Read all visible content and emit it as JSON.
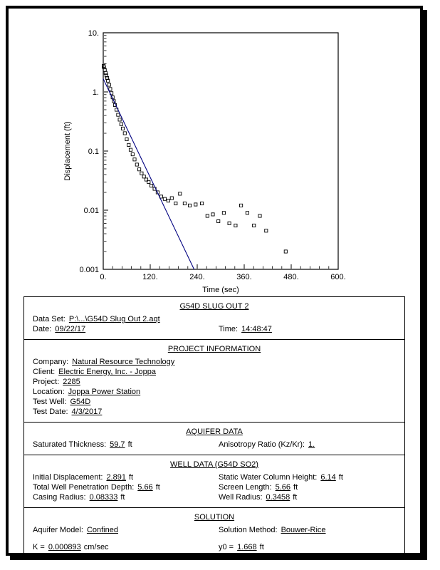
{
  "chart": {
    "ylabel": "Displacement (ft)",
    "xlabel": "Time (sec)",
    "y_tick_labels": [
      "10.",
      "1.",
      "0.1",
      "0.01",
      "0.001"
    ],
    "x_ticks": [
      0,
      120,
      240,
      360,
      480,
      600
    ],
    "x_tick_labels": [
      "0.",
      "120.",
      "240.",
      "360.",
      "480.",
      "600."
    ]
  },
  "chart_data": {
    "type": "scatter",
    "title": "",
    "xlabel": "Time (sec)",
    "ylabel": "Displacement (ft)",
    "xlim": [
      0,
      600
    ],
    "ylim": [
      0.001,
      10
    ],
    "yscale": "log",
    "grid": false,
    "series": [
      {
        "name": "observed-displacement",
        "marker": "open-square",
        "color": "#000000",
        "points": [
          [
            1,
            2.75
          ],
          [
            2,
            2.6
          ],
          [
            4,
            2.35
          ],
          [
            6,
            2.1
          ],
          [
            8,
            1.9
          ],
          [
            10,
            1.72
          ],
          [
            12,
            1.55
          ],
          [
            15,
            1.32
          ],
          [
            18,
            1.12
          ],
          [
            21,
            0.95
          ],
          [
            24,
            0.81
          ],
          [
            27,
            0.7
          ],
          [
            30,
            0.6
          ],
          [
            34,
            0.5
          ],
          [
            38,
            0.41
          ],
          [
            42,
            0.34
          ],
          [
            46,
            0.285
          ],
          [
            50,
            0.24
          ],
          [
            55,
            0.2
          ],
          [
            60,
            0.158
          ],
          [
            65,
            0.127
          ],
          [
            70,
            0.105
          ],
          [
            75,
            0.088
          ],
          [
            80,
            0.072
          ],
          [
            86,
            0.059
          ],
          [
            92,
            0.049
          ],
          [
            98,
            0.042
          ],
          [
            104,
            0.037
          ],
          [
            110,
            0.033
          ],
          [
            116,
            0.03
          ],
          [
            123,
            0.026
          ],
          [
            131,
            0.023
          ],
          [
            139,
            0.02
          ],
          [
            148,
            0.017
          ],
          [
            157,
            0.0155
          ],
          [
            166,
            0.0145
          ],
          [
            175,
            0.016
          ],
          [
            185,
            0.013
          ],
          [
            196,
            0.019
          ],
          [
            208,
            0.013
          ],
          [
            221,
            0.012
          ],
          [
            236,
            0.0125
          ],
          [
            252,
            0.013
          ],
          [
            266,
            0.008
          ],
          [
            280,
            0.0085
          ],
          [
            294,
            0.0065
          ],
          [
            308,
            0.009
          ],
          [
            322,
            0.006
          ],
          [
            338,
            0.0055
          ],
          [
            352,
            0.012
          ],
          [
            368,
            0.009
          ],
          [
            385,
            0.0055
          ],
          [
            400,
            0.008
          ],
          [
            416,
            0.0045
          ],
          [
            466,
            0.002
          ]
        ]
      },
      {
        "name": "bouwer-rice-fit-line",
        "type": "line",
        "color": "#000080",
        "points": [
          [
            0,
            1.668
          ],
          [
            232,
            0.001
          ]
        ]
      }
    ]
  },
  "report": {
    "header": {
      "title": "G54D SLUG OUT 2",
      "dataset_label": "Data Set:",
      "dataset_value": "P:\\...\\G54D Slug Out 2.aqt",
      "date_label": "Date:",
      "date_value": "09/22/17",
      "time_label": "Time:",
      "time_value": "14:48:47"
    },
    "project": {
      "title": "PROJECT INFORMATION",
      "fields": [
        {
          "label": "Company:",
          "value": "Natural Resource Technology"
        },
        {
          "label": "Client:",
          "value": "Electric Energy, Inc. - Joppa"
        },
        {
          "label": "Project:",
          "value": "2285"
        },
        {
          "label": "Location:",
          "value": "Joppa Power Station"
        },
        {
          "label": "Test Well:",
          "value": "G54D"
        },
        {
          "label": "Test Date:",
          "value": "4/3/2017"
        }
      ]
    },
    "aquifer": {
      "title": "AQUIFER DATA",
      "left": [
        {
          "label": "Saturated Thickness:",
          "value": "59.7",
          "unit": "ft"
        }
      ],
      "right": [
        {
          "label": "Anisotropy Ratio (Kz/Kr):",
          "value": "1.",
          "unit": ""
        }
      ]
    },
    "well": {
      "title": "WELL DATA (G54D SO2)",
      "left": [
        {
          "label": "Initial Displacement:",
          "value": "2.891",
          "unit": "ft"
        },
        {
          "label": "Total Well Penetration Depth:",
          "value": "5.66",
          "unit": "ft"
        },
        {
          "label": "Casing Radius:",
          "value": "0.08333",
          "unit": "ft"
        }
      ],
      "right": [
        {
          "label": "Static Water Column Height:",
          "value": "6.14",
          "unit": "ft"
        },
        {
          "label": "Screen Length:",
          "value": "5.66",
          "unit": "ft"
        },
        {
          "label": "Well Radius:",
          "value": "0.3458",
          "unit": "ft"
        }
      ]
    },
    "solution": {
      "title": "SOLUTION",
      "left": [
        {
          "label": "Aquifer Model:",
          "value": "Confined",
          "unit": ""
        },
        {
          "label": "K  =",
          "value": "0.000893",
          "unit": "cm/sec"
        }
      ],
      "right": [
        {
          "label": "Solution Method:",
          "value": "Bouwer-Rice",
          "unit": ""
        },
        {
          "label": "y0  =",
          "value": "1.668",
          "unit": "ft"
        }
      ]
    }
  }
}
